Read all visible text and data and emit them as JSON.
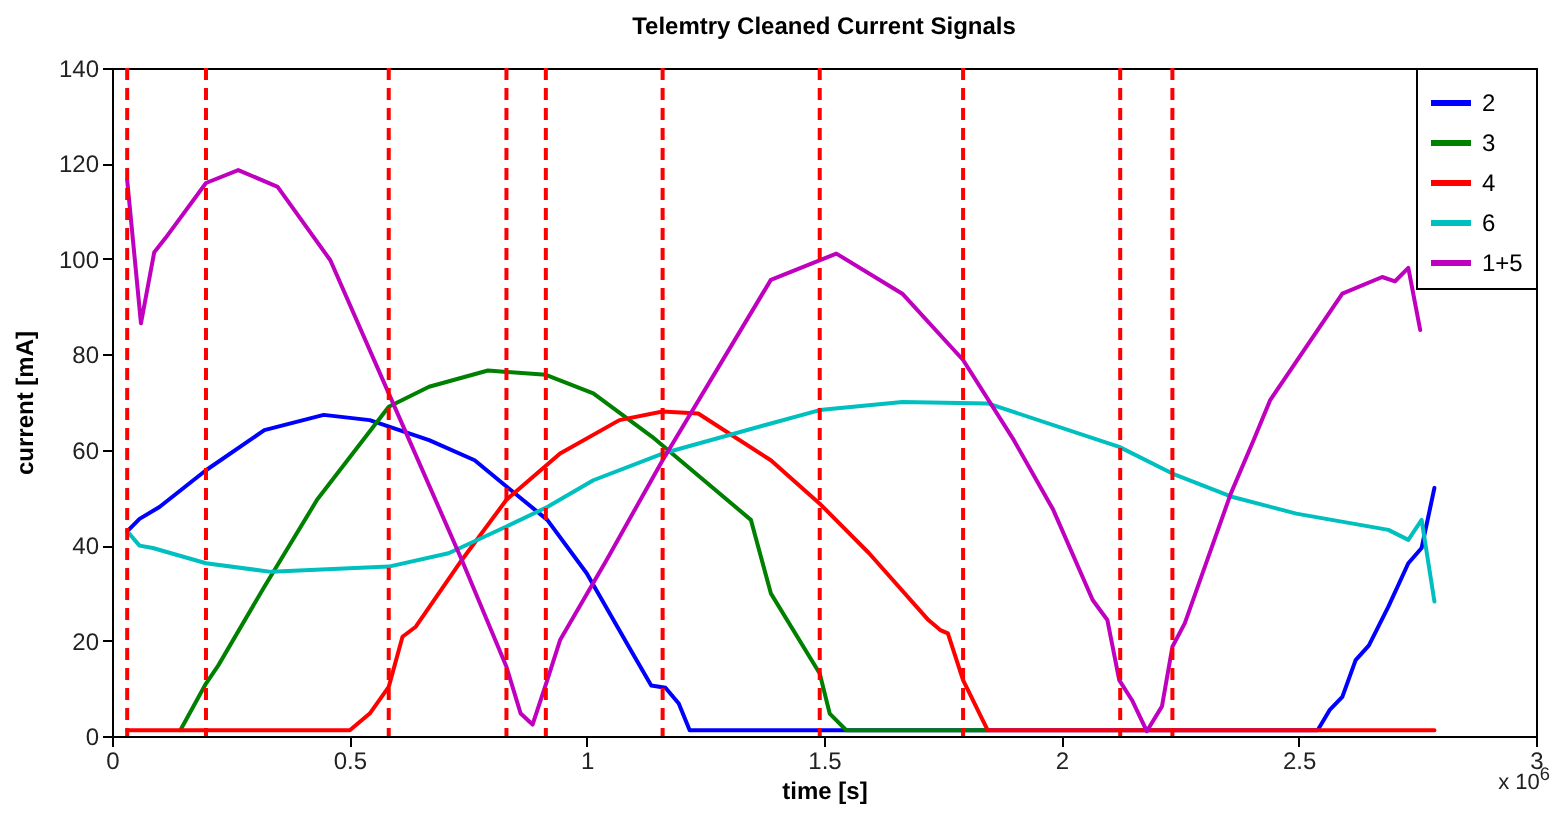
{
  "chart_data": {
    "type": "line",
    "title": "Telemtry Cleaned Current Signals",
    "xlabel": "time [s]",
    "ylabel": "current [mA]",
    "annotations": [
      "x 10$^{6}$"
    ],
    "xlim": [
      0,
      3
    ],
    "xticks": [
      0,
      0.5,
      1,
      1.5,
      2,
      2.5,
      3
    ],
    "ylim": [
      0,
      140
    ],
    "yticks": [
      0,
      20,
      40,
      60,
      80,
      100,
      120,
      140
    ],
    "grid": false,
    "legend": "top right",
    "line_style": "solid",
    "marker": "none",
    "ref_lines": [
      {
        "axis": "x",
        "value": 0.032,
        "color": "#ff0000",
        "line_style": "dashed"
      },
      {
        "axis": "x",
        "value": 0.198,
        "color": "#ff0000",
        "line_style": "dashed"
      },
      {
        "axis": "x",
        "value": 0.583,
        "color": "#ff0000",
        "line_style": "dashed"
      },
      {
        "axis": "x",
        "value": 0.831,
        "color": "#ff0000",
        "line_style": "dashed"
      },
      {
        "axis": "x",
        "value": 0.914,
        "color": "#ff0000",
        "line_style": "dashed"
      },
      {
        "axis": "x",
        "value": 1.16,
        "color": "#ff0000",
        "line_style": "dashed"
      },
      {
        "axis": "x",
        "value": 1.491,
        "color": "#ff0000",
        "line_style": "dashed"
      },
      {
        "axis": "x",
        "value": 1.793,
        "color": "#ff0000",
        "line_style": "dashed"
      },
      {
        "axis": "x",
        "value": 2.124,
        "color": "#ff0000",
        "line_style": "dashed"
      },
      {
        "axis": "x",
        "value": 2.234,
        "color": "#ff0000",
        "line_style": "dashed"
      }
    ],
    "series": [
      {
        "name": "2",
        "color": "#0000ff",
        "x": [
          0.032,
          0.058,
          0.1,
          0.198,
          0.321,
          0.446,
          0.543,
          0.668,
          0.764,
          0.831,
          0.917,
          1.0,
          1.097,
          1.136,
          1.166,
          1.194,
          1.217,
          2.54,
          2.565,
          2.592,
          2.62,
          2.648,
          2.689,
          2.731,
          2.759,
          2.786
        ],
        "values": [
          42.9,
          45.5,
          48,
          55.7,
          64.1,
          67.3,
          66.2,
          62,
          57.8,
          52.3,
          45.3,
          34.1,
          17.3,
          10.6,
          10.1,
          6.8,
          1.2,
          1.2,
          5.4,
          8.2,
          15.9,
          19,
          27.1,
          36.2,
          39.4,
          52
        ]
      },
      {
        "name": "3",
        "color": "#008000",
        "x": [
          0.144,
          0.198,
          0.224,
          0.321,
          0.432,
          0.583,
          0.668,
          0.792,
          0.914,
          1.014,
          1.138,
          1.346,
          1.388,
          1.491,
          1.512,
          1.547,
          1.845
        ],
        "values": [
          1.2,
          11,
          14.8,
          31.3,
          49.5,
          69,
          73.2,
          76.6,
          75.7,
          71.8,
          62.7,
          45.3,
          29.9,
          13.1,
          4.7,
          1.2,
          1.2
        ]
      },
      {
        "name": "4",
        "color": "#ff0000",
        "x": [
          0.032,
          0.501,
          0.543,
          0.583,
          0.612,
          0.64,
          0.737,
          0.831,
          0.944,
          1.069,
          1.16,
          1.235,
          1.388,
          1.491,
          1.595,
          1.72,
          1.745,
          1.761,
          1.793,
          1.845,
          2.786
        ],
        "values": [
          1.2,
          1.2,
          4.7,
          10.3,
          20.8,
          22.9,
          36.9,
          49.5,
          59.2,
          66.2,
          68,
          67.6,
          57.8,
          48.7,
          38.3,
          24.3,
          22.2,
          21.5,
          11.7,
          1.2,
          1.2
        ]
      },
      {
        "name": "6",
        "color": "#00bfbf",
        "x": [
          0.032,
          0.058,
          0.086,
          0.198,
          0.335,
          0.583,
          0.709,
          0.831,
          0.917,
          1.014,
          1.16,
          1.388,
          1.491,
          1.665,
          1.845,
          2.122,
          2.234,
          2.357,
          2.495,
          2.689,
          2.731,
          2.759,
          2.786
        ],
        "values": [
          42.9,
          39.9,
          39.4,
          36.2,
          34.4,
          35.5,
          38.3,
          43.9,
          48,
          53.6,
          59.2,
          65.5,
          68.3,
          70,
          69.7,
          60.6,
          55,
          50.2,
          46.6,
          43.2,
          41.1,
          45.3,
          28.2
        ]
      },
      {
        "name": "1+5",
        "color": "#bf00bf",
        "x": [
          0.032,
          0.061,
          0.089,
          0.113,
          0.198,
          0.266,
          0.349,
          0.46,
          0.583,
          0.737,
          0.831,
          0.861,
          0.886,
          0.917,
          0.944,
          1.042,
          1.16,
          1.388,
          1.526,
          1.665,
          1.793,
          1.9,
          1.983,
          2.066,
          2.097,
          2.122,
          2.149,
          2.18,
          2.212,
          2.234,
          2.26,
          2.357,
          2.405,
          2.44,
          2.592,
          2.676,
          2.703,
          2.731,
          2.756
        ],
        "values": [
          116.5,
          86.5,
          101.4,
          104.4,
          115.9,
          118.6,
          115.1,
          99.7,
          71.8,
          36.9,
          14.5,
          4.7,
          2.4,
          11.7,
          20.1,
          36.9,
          57.8,
          95.6,
          101.1,
          92.7,
          78.8,
          62,
          47.4,
          28.5,
          24.3,
          11.7,
          7.5,
          1,
          6.2,
          18.7,
          23.6,
          50.8,
          62,
          70.4,
          92.7,
          96.2,
          95.3,
          98.1,
          85.1
        ]
      }
    ]
  }
}
